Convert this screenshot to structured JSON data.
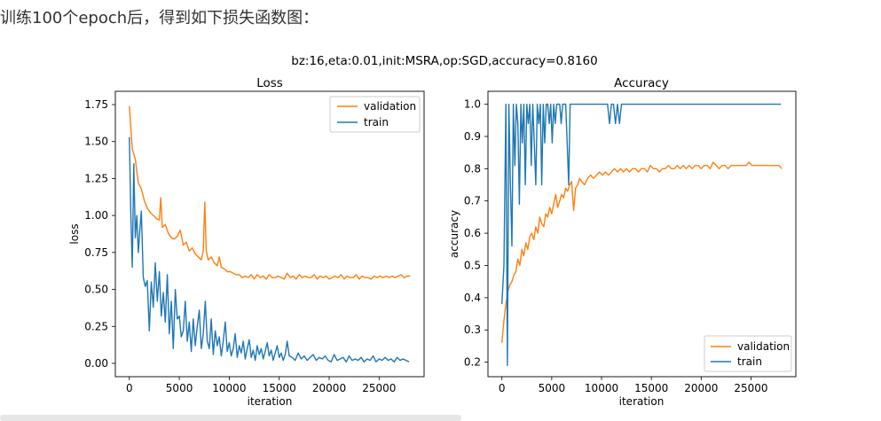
{
  "intro_text": "训练100个epoch后，得到如下损失函数图：",
  "suptitle": "bz:16,eta:0.01,init:MSRA,op:SGD,accuracy=0.8160",
  "colors": {
    "validation": "#ff7f0e",
    "train": "#1f77b4"
  },
  "chart_data": [
    {
      "type": "line",
      "title": "Loss",
      "xlabel": "iteration",
      "ylabel": "loss",
      "xlim": [
        -1400,
        29500
      ],
      "ylim": [
        -0.09,
        1.84
      ],
      "xticks": [
        0,
        5000,
        10000,
        15000,
        20000,
        25000
      ],
      "xtick_labels": [
        "0",
        "5000",
        "10000",
        "15000",
        "20000",
        "25000"
      ],
      "yticks": [
        0.0,
        0.25,
        0.5,
        0.75,
        1.0,
        1.25,
        1.5,
        1.75
      ],
      "ytick_labels": [
        "0.00",
        "0.25",
        "0.50",
        "0.75",
        "1.00",
        "1.25",
        "1.50",
        "1.75"
      ],
      "legend_position": "upper-right",
      "series": [
        {
          "name": "validation",
          "x": [
            0,
            300,
            600,
            900,
            1200,
            1500,
            1800,
            2100,
            2400,
            2700,
            3000,
            3150,
            3300,
            3600,
            3900,
            4200,
            4500,
            4800,
            5100,
            5400,
            5700,
            6000,
            6300,
            6600,
            6900,
            7200,
            7400,
            7550,
            7700,
            7900,
            8200,
            8500,
            8800,
            9000,
            9200,
            9500,
            9800,
            10100,
            10400,
            10700,
            11000,
            11300,
            11600,
            11900,
            12200,
            12500,
            12800,
            13100,
            13400,
            13700,
            14000,
            14300,
            14600,
            14900,
            15200,
            15500,
            15800,
            16100,
            16400,
            16700,
            17000,
            17300,
            17600,
            17900,
            18200,
            18500,
            18800,
            19100,
            19400,
            19700,
            20000,
            20300,
            20600,
            20900,
            21200,
            21500,
            21800,
            22100,
            22400,
            22700,
            23000,
            23300,
            23600,
            23900,
            24200,
            24500,
            24800,
            25100,
            25400,
            25700,
            26000,
            26300,
            26600,
            26900,
            27200,
            27500,
            27800,
            28100
          ],
          "y": [
            1.74,
            1.45,
            1.38,
            1.22,
            1.18,
            1.1,
            1.05,
            1.02,
            1.0,
            0.98,
            0.97,
            1.12,
            0.92,
            0.94,
            0.88,
            0.85,
            0.84,
            0.86,
            0.9,
            0.8,
            0.82,
            0.76,
            0.78,
            0.74,
            0.72,
            0.7,
            0.76,
            1.09,
            0.76,
            0.7,
            0.72,
            0.68,
            0.66,
            0.72,
            0.65,
            0.64,
            0.62,
            0.62,
            0.61,
            0.6,
            0.6,
            0.58,
            0.59,
            0.58,
            0.6,
            0.57,
            0.6,
            0.58,
            0.59,
            0.57,
            0.6,
            0.58,
            0.58,
            0.59,
            0.58,
            0.57,
            0.61,
            0.58,
            0.59,
            0.57,
            0.6,
            0.58,
            0.59,
            0.58,
            0.58,
            0.6,
            0.57,
            0.59,
            0.58,
            0.59,
            0.57,
            0.58,
            0.59,
            0.58,
            0.6,
            0.57,
            0.59,
            0.58,
            0.58,
            0.6,
            0.57,
            0.59,
            0.58,
            0.58,
            0.57,
            0.59,
            0.58,
            0.59,
            0.58,
            0.59,
            0.58,
            0.59,
            0.58,
            0.59,
            0.6,
            0.58,
            0.59,
            0.59
          ]
        },
        {
          "name": "train",
          "x": [
            0,
            150,
            300,
            450,
            600,
            750,
            900,
            1050,
            1200,
            1400,
            1600,
            1800,
            2000,
            2200,
            2400,
            2600,
            2800,
            3000,
            3200,
            3400,
            3600,
            3800,
            4000,
            4200,
            4400,
            4600,
            4800,
            5000,
            5200,
            5400,
            5600,
            5800,
            6000,
            6200,
            6400,
            6600,
            6800,
            7000,
            7200,
            7400,
            7600,
            7800,
            8000,
            8200,
            8400,
            8600,
            8800,
            9000,
            9200,
            9400,
            9600,
            9800,
            10000,
            10200,
            10400,
            10600,
            10800,
            11000,
            11200,
            11400,
            11600,
            11800,
            12000,
            12200,
            12400,
            12600,
            12800,
            13000,
            13200,
            13400,
            13600,
            13800,
            14000,
            14200,
            14400,
            14600,
            14800,
            15000,
            15200,
            15400,
            15600,
            15800,
            16000,
            16300,
            16600,
            16900,
            17200,
            17500,
            17800,
            18100,
            18400,
            18700,
            19000,
            19300,
            19600,
            19900,
            20200,
            20500,
            20800,
            21100,
            21400,
            21700,
            22000,
            22300,
            22600,
            22900,
            23200,
            23500,
            23800,
            24100,
            24400,
            24700,
            25000,
            25300,
            25600,
            25900,
            26200,
            26500,
            26800,
            27100,
            27400,
            27700,
            28000
          ],
          "y": [
            1.53,
            1.0,
            0.65,
            1.35,
            0.85,
            1.0,
            0.75,
            0.9,
            1.03,
            0.58,
            0.52,
            0.56,
            0.22,
            0.55,
            0.38,
            0.68,
            0.42,
            0.62,
            0.32,
            0.48,
            0.28,
            0.6,
            0.2,
            0.42,
            0.1,
            0.5,
            0.3,
            0.32,
            0.18,
            0.22,
            0.42,
            0.15,
            0.28,
            0.08,
            0.3,
            0.12,
            0.25,
            0.36,
            0.1,
            0.2,
            0.42,
            0.15,
            0.1,
            0.3,
            0.06,
            0.22,
            0.12,
            0.18,
            0.05,
            0.15,
            0.28,
            0.08,
            0.14,
            0.05,
            0.1,
            0.2,
            0.04,
            0.12,
            0.07,
            0.15,
            0.03,
            0.1,
            0.16,
            0.04,
            0.09,
            0.02,
            0.12,
            0.06,
            0.1,
            0.03,
            0.08,
            0.14,
            0.05,
            0.09,
            0.02,
            0.07,
            0.12,
            0.04,
            0.07,
            0.02,
            0.06,
            0.15,
            0.05,
            0.04,
            0.02,
            0.07,
            0.03,
            0.05,
            0.02,
            0.04,
            0.06,
            0.02,
            0.04,
            0.03,
            0.05,
            0.02,
            0.01,
            0.06,
            0.02,
            0.03,
            0.04,
            0.01,
            0.05,
            0.02,
            0.03,
            0.02,
            0.04,
            0.01,
            0.03,
            0.02,
            0.05,
            0.01,
            0.03,
            0.02,
            0.04,
            0.02,
            0.03,
            0.01,
            0.04,
            0.02,
            0.03,
            0.02,
            0.01
          ]
        }
      ]
    },
    {
      "type": "line",
      "title": "Accuracy",
      "xlabel": "iteration",
      "ylabel": "accuracy",
      "xlim": [
        -1400,
        29500
      ],
      "ylim": [
        0.155,
        1.04
      ],
      "xticks": [
        0,
        5000,
        10000,
        15000,
        20000,
        25000
      ],
      "xtick_labels": [
        "0",
        "5000",
        "10000",
        "15000",
        "20000",
        "25000"
      ],
      "yticks": [
        0.2,
        0.3,
        0.4,
        0.5,
        0.6,
        0.7,
        0.8,
        0.9,
        1.0
      ],
      "ytick_labels": [
        "0.2",
        "0.3",
        "0.4",
        "0.5",
        "0.6",
        "0.7",
        "0.8",
        "0.9",
        "1.0"
      ],
      "legend_position": "lower-right",
      "series": [
        {
          "name": "validation",
          "x": [
            0,
            200,
            400,
            600,
            800,
            1000,
            1200,
            1400,
            1600,
            1800,
            2000,
            2200,
            2400,
            2600,
            2800,
            3000,
            3200,
            3400,
            3600,
            3800,
            4000,
            4200,
            4400,
            4600,
            4800,
            5000,
            5200,
            5400,
            5600,
            5800,
            6000,
            6200,
            6400,
            6600,
            6800,
            7000,
            7200,
            7400,
            7600,
            7800,
            8000,
            8300,
            8600,
            8900,
            9200,
            9500,
            9800,
            10100,
            10400,
            10700,
            11000,
            11300,
            11600,
            11900,
            12200,
            12500,
            12800,
            13100,
            13400,
            13700,
            14000,
            14300,
            14600,
            14900,
            15200,
            15500,
            15800,
            16100,
            16400,
            16700,
            17000,
            17300,
            17600,
            17900,
            18200,
            18500,
            18800,
            19100,
            19400,
            19700,
            20000,
            20300,
            20600,
            20900,
            21200,
            21500,
            21800,
            22100,
            22400,
            22700,
            23000,
            23300,
            23600,
            23900,
            24200,
            24500,
            24800,
            25100,
            25400,
            25700,
            26000,
            26300,
            26600,
            26900,
            27200,
            27500,
            27800,
            28100
          ],
          "y": [
            0.26,
            0.33,
            0.38,
            0.42,
            0.44,
            0.45,
            0.47,
            0.48,
            0.52,
            0.5,
            0.55,
            0.53,
            0.57,
            0.55,
            0.59,
            0.6,
            0.58,
            0.62,
            0.6,
            0.65,
            0.63,
            0.62,
            0.66,
            0.65,
            0.68,
            0.66,
            0.69,
            0.72,
            0.68,
            0.7,
            0.72,
            0.71,
            0.74,
            0.73,
            0.75,
            0.76,
            0.67,
            0.74,
            0.75,
            0.77,
            0.76,
            0.75,
            0.77,
            0.78,
            0.77,
            0.78,
            0.79,
            0.78,
            0.79,
            0.78,
            0.79,
            0.8,
            0.79,
            0.8,
            0.79,
            0.8,
            0.79,
            0.8,
            0.8,
            0.79,
            0.8,
            0.8,
            0.79,
            0.81,
            0.8,
            0.8,
            0.79,
            0.8,
            0.8,
            0.81,
            0.8,
            0.8,
            0.81,
            0.8,
            0.81,
            0.8,
            0.81,
            0.8,
            0.81,
            0.81,
            0.8,
            0.81,
            0.81,
            0.8,
            0.82,
            0.81,
            0.8,
            0.81,
            0.81,
            0.8,
            0.81,
            0.81,
            0.81,
            0.81,
            0.81,
            0.81,
            0.82,
            0.81,
            0.81,
            0.81,
            0.81,
            0.81,
            0.81,
            0.81,
            0.81,
            0.81,
            0.81,
            0.8
          ]
        },
        {
          "name": "train",
          "x": [
            0,
            200,
            400,
            550,
            700,
            850,
            1000,
            1150,
            1300,
            1450,
            1600,
            1750,
            1900,
            2050,
            2200,
            2350,
            2500,
            2650,
            2800,
            2950,
            3100,
            3250,
            3400,
            3550,
            3700,
            3850,
            4000,
            4150,
            4300,
            4450,
            4600,
            4750,
            4900,
            5050,
            5200,
            5350,
            5500,
            5650,
            5800,
            5950,
            6100,
            6250,
            6400,
            6550,
            6700,
            6850,
            7000,
            7200,
            7400,
            7600,
            7800,
            8000,
            8200,
            8400,
            8600,
            8800,
            9000,
            9200,
            9400,
            9600,
            9800,
            10000,
            10200,
            10400,
            10600,
            10800,
            11000,
            11200,
            11400,
            11600,
            11800,
            12000,
            12500,
            13000,
            14000,
            15000,
            16000,
            17000,
            18000,
            19000,
            20000,
            21000,
            22000,
            23000,
            24000,
            25000,
            26000,
            27000,
            28000
          ],
          "y": [
            0.38,
            0.5,
            1.0,
            0.19,
            1.0,
            0.75,
            0.56,
            1.0,
            0.81,
            1.0,
            0.94,
            0.69,
            1.0,
            0.88,
            1.0,
            0.75,
            1.0,
            0.94,
            1.0,
            0.81,
            1.0,
            0.88,
            0.75,
            1.0,
            0.94,
            1.0,
            0.75,
            1.0,
            0.88,
            1.0,
            1.0,
            0.94,
            1.0,
            0.88,
            1.0,
            0.94,
            1.0,
            1.0,
            1.0,
            0.94,
            1.0,
            1.0,
            1.0,
            0.88,
            0.75,
            1.0,
            1.0,
            1.0,
            1.0,
            1.0,
            1.0,
            1.0,
            1.0,
            1.0,
            1.0,
            1.0,
            1.0,
            1.0,
            1.0,
            1.0,
            1.0,
            1.0,
            1.0,
            1.0,
            1.0,
            0.94,
            1.0,
            1.0,
            0.94,
            1.0,
            0.94,
            1.0,
            1.0,
            1.0,
            1.0,
            1.0,
            1.0,
            1.0,
            1.0,
            1.0,
            1.0,
            1.0,
            1.0,
            1.0,
            1.0,
            1.0,
            1.0,
            1.0,
            1.0
          ]
        }
      ]
    }
  ]
}
